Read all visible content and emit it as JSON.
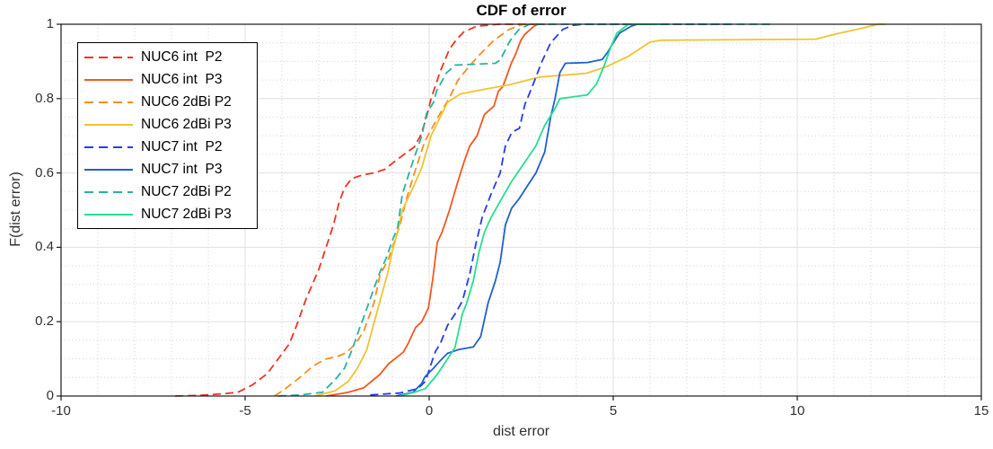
{
  "chart_data": {
    "type": "line",
    "title": "CDF of error",
    "xlabel": "dist error",
    "ylabel": "F(dist error)",
    "xlim": [
      -10,
      15
    ],
    "ylim": [
      0,
      1
    ],
    "x_ticks": [
      -10,
      -5,
      0,
      5,
      10,
      15
    ],
    "y_ticks": [
      0,
      0.2,
      0.4,
      0.6,
      0.8,
      1
    ],
    "x_minor_step": 1,
    "y_minor_step": 0.05,
    "grid": true,
    "legend_position": "top-left",
    "colors": {
      "axis": "#1a1a1a",
      "major_grid": "#e0e0e0",
      "minor_grid": "#d2d2d2",
      "background": "#ffffff"
    },
    "series": [
      {
        "name": "NUC6 int  P2",
        "color": "#F23222",
        "dash": true,
        "points": [
          [
            -6.9,
            0
          ],
          [
            -6.2,
            0.002
          ],
          [
            -5.6,
            0.006
          ],
          [
            -5.2,
            0.01
          ],
          [
            -4.8,
            0.03
          ],
          [
            -4.4,
            0.06
          ],
          [
            -4.1,
            0.1
          ],
          [
            -3.8,
            0.14
          ],
          [
            -3.6,
            0.19
          ],
          [
            -3.35,
            0.26
          ],
          [
            -3.0,
            0.34
          ],
          [
            -2.8,
            0.4
          ],
          [
            -2.6,
            0.46
          ],
          [
            -2.45,
            0.52
          ],
          [
            -2.3,
            0.56
          ],
          [
            -2.1,
            0.585
          ],
          [
            -1.8,
            0.595
          ],
          [
            -1.5,
            0.6
          ],
          [
            -1.2,
            0.61
          ],
          [
            -0.95,
            0.63
          ],
          [
            -0.6,
            0.656
          ],
          [
            -0.4,
            0.67
          ],
          [
            -0.24,
            0.7
          ],
          [
            -0.1,
            0.74
          ],
          [
            0.05,
            0.8
          ],
          [
            0.3,
            0.873
          ],
          [
            0.55,
            0.933
          ],
          [
            0.75,
            0.96
          ],
          [
            0.95,
            0.98
          ],
          [
            1.3,
            0.995
          ],
          [
            1.9,
            1
          ],
          [
            2.9,
            1
          ]
        ]
      },
      {
        "name": "NUC6 int  P3",
        "color": "#F2591F",
        "dash": false,
        "points": [
          [
            -2.8,
            0
          ],
          [
            -2.2,
            0.01
          ],
          [
            -1.78,
            0.022
          ],
          [
            -1.34,
            0.058
          ],
          [
            -1.1,
            0.087
          ],
          [
            -0.85,
            0.106
          ],
          [
            -0.7,
            0.118
          ],
          [
            -0.56,
            0.143
          ],
          [
            -0.37,
            0.184
          ],
          [
            -0.2,
            0.2
          ],
          [
            -0.02,
            0.237
          ],
          [
            0.1,
            0.316
          ],
          [
            0.22,
            0.413
          ],
          [
            0.35,
            0.44
          ],
          [
            0.54,
            0.496
          ],
          [
            0.78,
            0.577
          ],
          [
            0.95,
            0.63
          ],
          [
            1.1,
            0.672
          ],
          [
            1.3,
            0.7
          ],
          [
            1.5,
            0.757
          ],
          [
            1.76,
            0.78
          ],
          [
            1.88,
            0.82
          ],
          [
            2.0,
            0.832
          ],
          [
            2.24,
            0.897
          ],
          [
            2.35,
            0.92
          ],
          [
            2.49,
            0.957
          ],
          [
            2.6,
            0.973
          ],
          [
            2.85,
            0.995
          ],
          [
            2.95,
            1
          ],
          [
            3.15,
            1
          ]
        ]
      },
      {
        "name": "NUC6 2dBi P2",
        "color": "#FA8C21",
        "dash": true,
        "points": [
          [
            -4.2,
            0
          ],
          [
            -3.9,
            0.02
          ],
          [
            -3.5,
            0.051
          ],
          [
            -3.16,
            0.08
          ],
          [
            -2.83,
            0.099
          ],
          [
            -2.5,
            0.106
          ],
          [
            -2.26,
            0.116
          ],
          [
            -2.0,
            0.14
          ],
          [
            -1.77,
            0.176
          ],
          [
            -1.5,
            0.25
          ],
          [
            -1.34,
            0.324
          ],
          [
            -1.1,
            0.37
          ],
          [
            -0.8,
            0.457
          ],
          [
            -0.6,
            0.536
          ],
          [
            -0.4,
            0.6
          ],
          [
            -0.12,
            0.685
          ],
          [
            0.25,
            0.752
          ],
          [
            0.54,
            0.8
          ],
          [
            0.78,
            0.849
          ],
          [
            1.07,
            0.885
          ],
          [
            1.39,
            0.92
          ],
          [
            1.76,
            0.957
          ],
          [
            2.17,
            0.986
          ],
          [
            2.49,
            0.998
          ],
          [
            2.6,
            1
          ],
          [
            3.0,
            1
          ]
        ]
      },
      {
        "name": "NUC6 2dBi P3",
        "color": "#F0C32F",
        "dash": false,
        "points": [
          [
            -3.1,
            0
          ],
          [
            -2.56,
            0.014
          ],
          [
            -2.2,
            0.039
          ],
          [
            -1.95,
            0.075
          ],
          [
            -1.7,
            0.123
          ],
          [
            -1.5,
            0.196
          ],
          [
            -1.3,
            0.268
          ],
          [
            -1.12,
            0.333
          ],
          [
            -1.0,
            0.39
          ],
          [
            -0.85,
            0.444
          ],
          [
            -0.73,
            0.5
          ],
          [
            -0.44,
            0.56
          ],
          [
            -0.2,
            0.615
          ],
          [
            0.05,
            0.7
          ],
          [
            0.3,
            0.75
          ],
          [
            0.5,
            0.79
          ],
          [
            0.85,
            0.8125
          ],
          [
            1.44,
            0.824
          ],
          [
            2.17,
            0.837
          ],
          [
            3.0,
            0.858
          ],
          [
            4.27,
            0.868
          ],
          [
            4.8,
            0.885
          ],
          [
            5.4,
            0.913
          ],
          [
            6.0,
            0.952
          ],
          [
            6.3,
            0.957
          ],
          [
            10.5,
            0.96
          ],
          [
            11.0,
            0.973
          ],
          [
            11.7,
            0.988
          ],
          [
            12.2,
            1
          ],
          [
            12.4,
            1
          ]
        ]
      },
      {
        "name": "NUC7 int  P2",
        "color": "#2A3BE8",
        "dash": true,
        "points": [
          [
            -1.6,
            0.003
          ],
          [
            -0.8,
            0.008
          ],
          [
            -0.3,
            0.02
          ],
          [
            -0.1,
            0.04
          ],
          [
            0.1,
            0.1
          ],
          [
            0.17,
            0.12
          ],
          [
            0.3,
            0.14
          ],
          [
            0.5,
            0.19
          ],
          [
            0.7,
            0.22
          ],
          [
            0.9,
            0.255
          ],
          [
            1.1,
            0.327
          ],
          [
            1.27,
            0.41
          ],
          [
            1.44,
            0.48
          ],
          [
            1.68,
            0.543
          ],
          [
            1.93,
            0.6
          ],
          [
            2.07,
            0.673
          ],
          [
            2.25,
            0.71
          ],
          [
            2.45,
            0.72
          ],
          [
            2.6,
            0.784
          ],
          [
            2.8,
            0.832
          ],
          [
            3.05,
            0.897
          ],
          [
            3.3,
            0.95
          ],
          [
            3.63,
            0.986
          ],
          [
            3.9,
            0.997
          ],
          [
            4.2,
            1
          ],
          [
            8.3,
            1
          ]
        ]
      },
      {
        "name": "NUC7 int  P3",
        "color": "#2060CE",
        "dash": false,
        "points": [
          [
            -0.9,
            0
          ],
          [
            -0.44,
            0.01
          ],
          [
            -0.2,
            0.034
          ],
          [
            -0.12,
            0.051
          ],
          [
            0.0,
            0.063
          ],
          [
            0.12,
            0.075
          ],
          [
            0.3,
            0.095
          ],
          [
            0.5,
            0.115
          ],
          [
            0.8,
            0.125
          ],
          [
            1.2,
            0.132
          ],
          [
            1.4,
            0.16
          ],
          [
            1.6,
            0.25
          ],
          [
            1.8,
            0.31
          ],
          [
            1.93,
            0.36
          ],
          [
            2.07,
            0.46
          ],
          [
            2.24,
            0.505
          ],
          [
            2.44,
            0.53
          ],
          [
            2.68,
            0.567
          ],
          [
            2.9,
            0.6
          ],
          [
            3.14,
            0.656
          ],
          [
            3.3,
            0.75
          ],
          [
            3.42,
            0.8
          ],
          [
            3.55,
            0.87
          ],
          [
            3.7,
            0.895
          ],
          [
            4.3,
            0.897
          ],
          [
            4.7,
            0.905
          ],
          [
            4.85,
            0.925
          ],
          [
            5.0,
            0.95
          ],
          [
            5.17,
            0.976
          ],
          [
            5.49,
            0.995
          ],
          [
            5.65,
            1
          ],
          [
            6.1,
            1
          ]
        ]
      },
      {
        "name": "NUC7 2dBi P2",
        "color": "#27B2A3",
        "dash": true,
        "points": [
          [
            -4.1,
            0
          ],
          [
            -3.5,
            0.003
          ],
          [
            -2.9,
            0.01
          ],
          [
            -2.56,
            0.043
          ],
          [
            -2.3,
            0.075
          ],
          [
            -2.1,
            0.123
          ],
          [
            -1.9,
            0.18
          ],
          [
            -1.75,
            0.22
          ],
          [
            -1.55,
            0.275
          ],
          [
            -1.34,
            0.333
          ],
          [
            -1.17,
            0.37
          ],
          [
            -1.0,
            0.418
          ],
          [
            -0.85,
            0.455
          ],
          [
            -0.73,
            0.543
          ],
          [
            -0.44,
            0.632
          ],
          [
            -0.2,
            0.7
          ],
          [
            -0.07,
            0.76
          ],
          [
            0.12,
            0.79
          ],
          [
            0.2,
            0.82
          ],
          [
            0.46,
            0.868
          ],
          [
            0.7,
            0.89
          ],
          [
            1.8,
            0.895
          ],
          [
            1.93,
            0.904
          ],
          [
            2.2,
            0.956
          ],
          [
            2.44,
            0.986
          ],
          [
            2.73,
            1
          ],
          [
            9.3,
            1
          ]
        ]
      },
      {
        "name": "NUC7 2dBi P3",
        "color": "#27DE90",
        "dash": false,
        "points": [
          [
            -0.8,
            0
          ],
          [
            -0.4,
            0.01
          ],
          [
            -0.1,
            0.02
          ],
          [
            0.22,
            0.058
          ],
          [
            0.5,
            0.1
          ],
          [
            0.7,
            0.13
          ],
          [
            0.9,
            0.22
          ],
          [
            1.02,
            0.25
          ],
          [
            1.2,
            0.31
          ],
          [
            1.35,
            0.385
          ],
          [
            1.5,
            0.44
          ],
          [
            1.68,
            0.48
          ],
          [
            2.0,
            0.536
          ],
          [
            2.24,
            0.577
          ],
          [
            2.57,
            0.625
          ],
          [
            2.9,
            0.673
          ],
          [
            3.14,
            0.728
          ],
          [
            3.4,
            0.77
          ],
          [
            3.55,
            0.8
          ],
          [
            4.3,
            0.81
          ],
          [
            4.55,
            0.84
          ],
          [
            4.76,
            0.89
          ],
          [
            4.93,
            0.9375
          ],
          [
            5.1,
            0.976
          ],
          [
            5.41,
            1
          ],
          [
            6.3,
            1
          ]
        ]
      }
    ]
  }
}
